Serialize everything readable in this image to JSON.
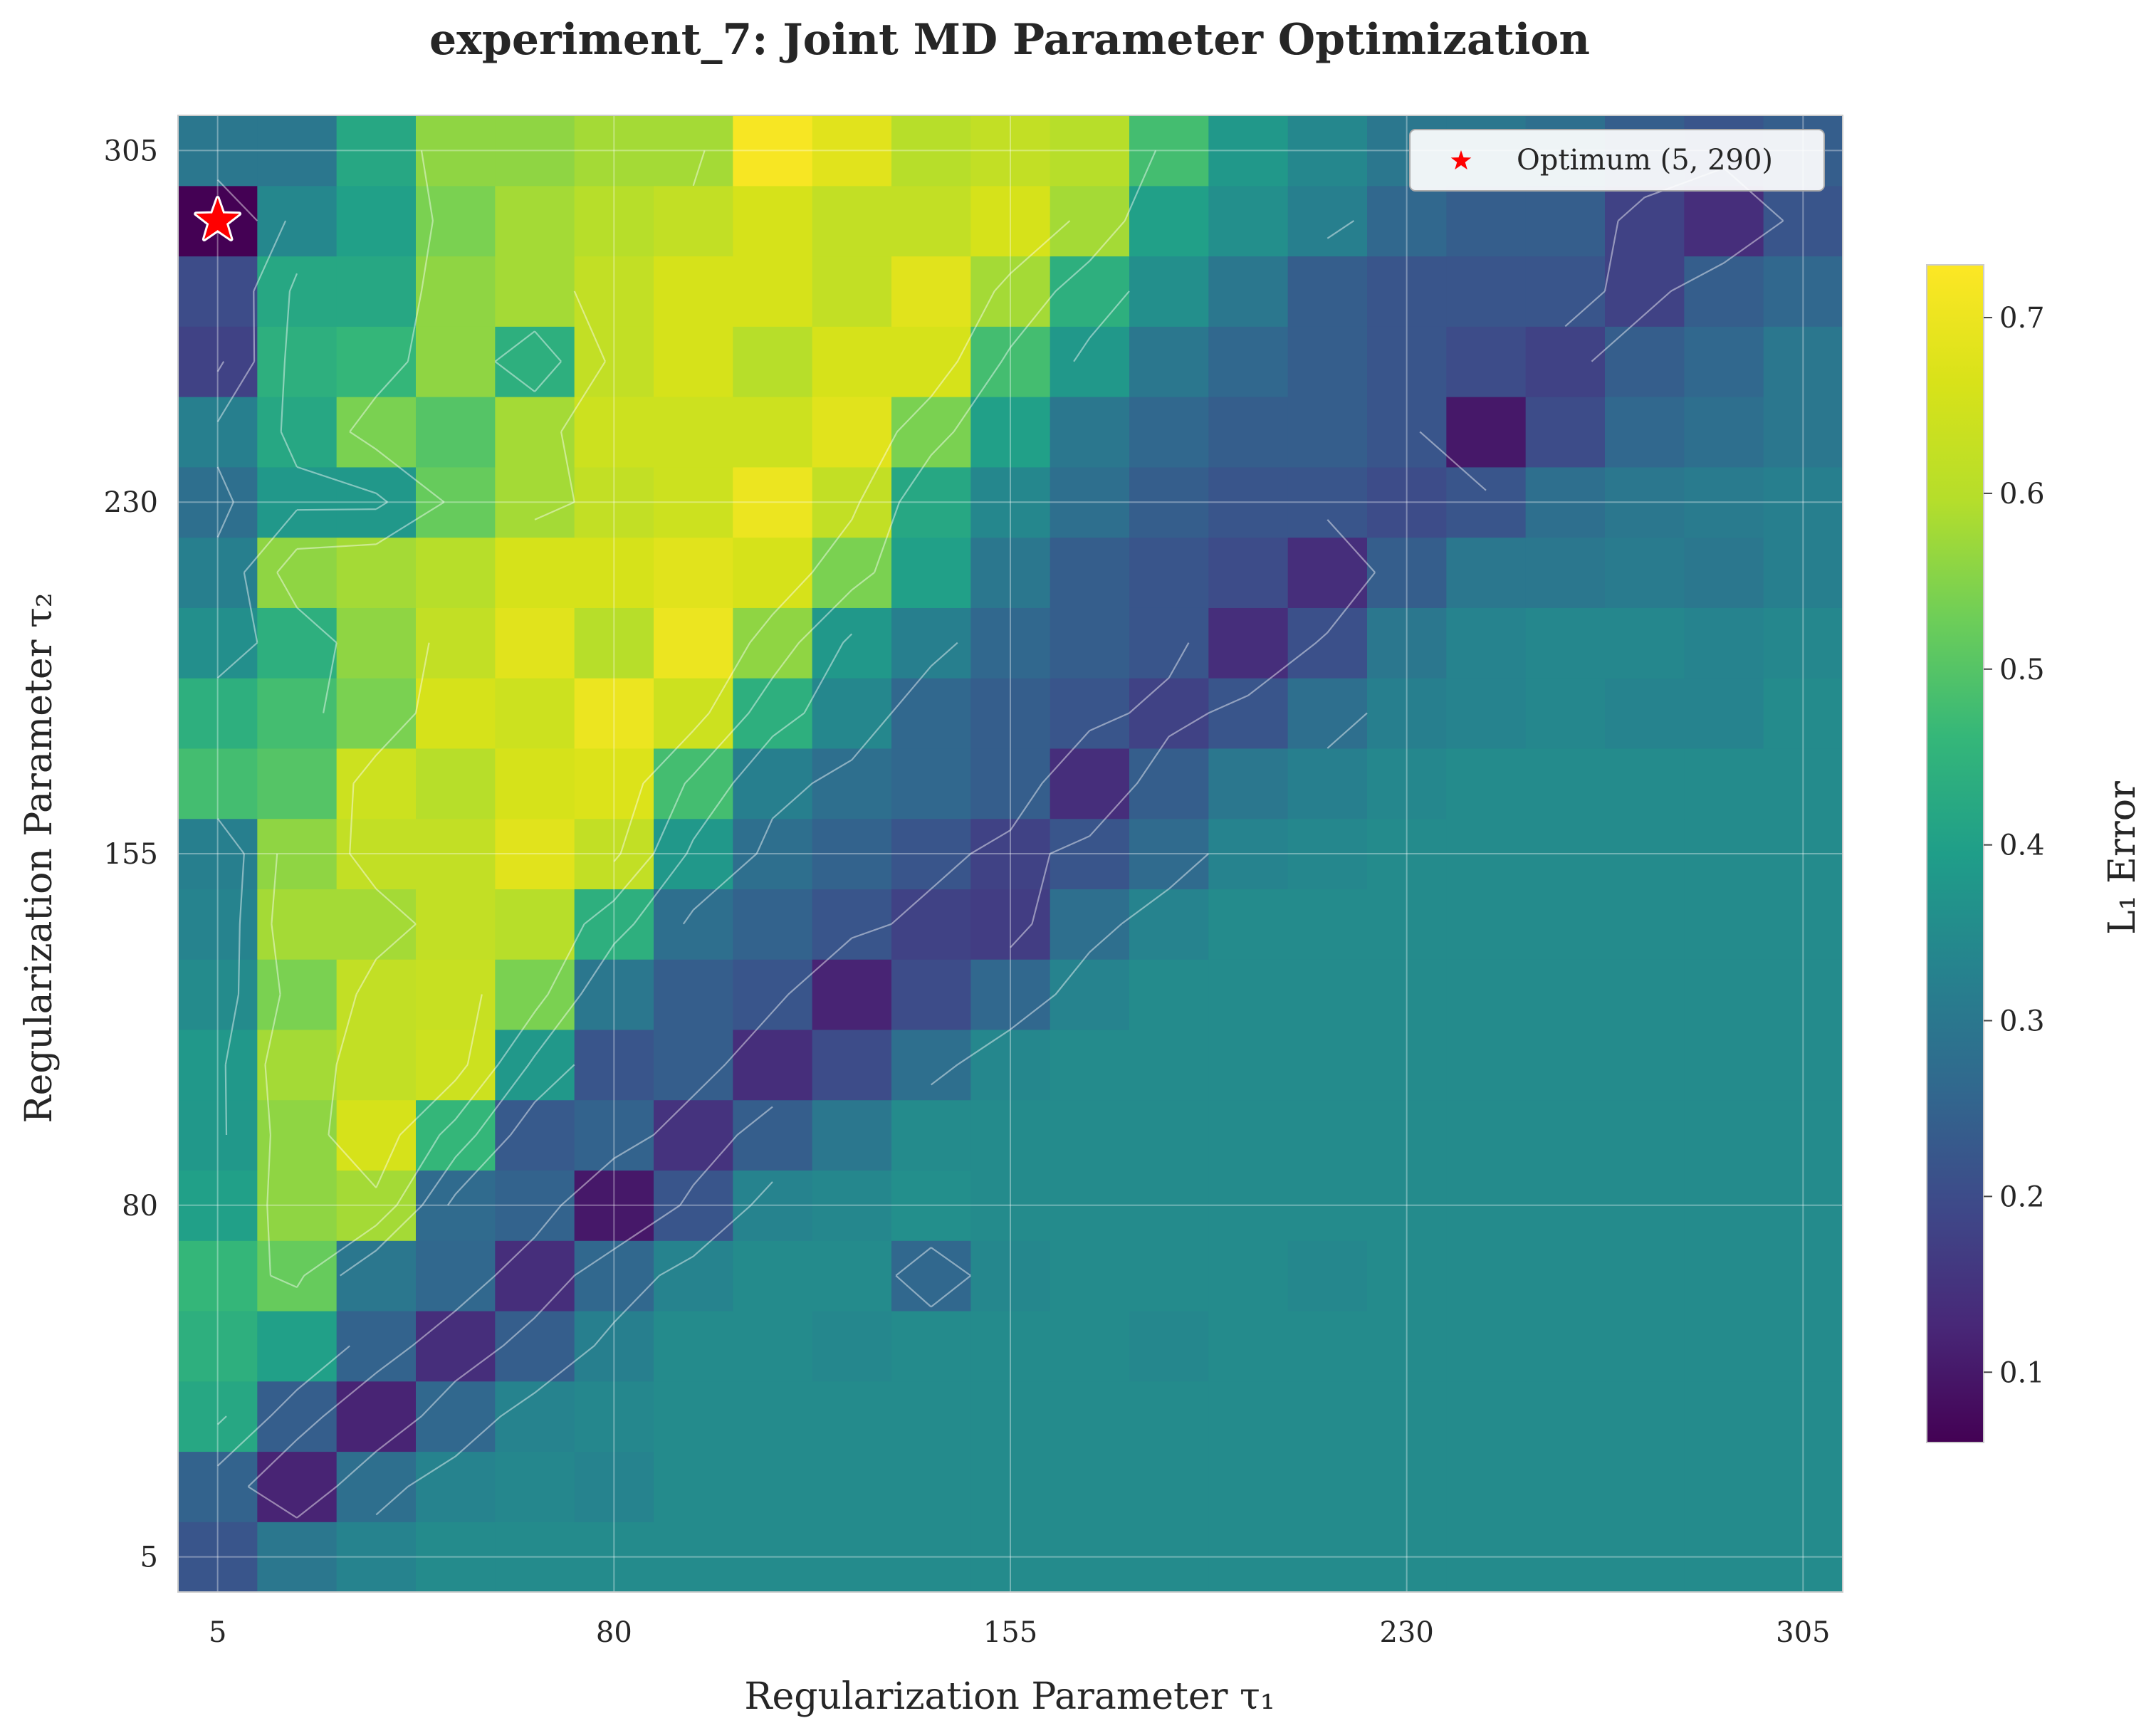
{
  "chart_data": {
    "type": "heatmap",
    "title": "experiment_7: Joint MD Parameter Optimization",
    "xlabel": "Regularization Parameter τ₁",
    "ylabel": "Regularization Parameter τ₂",
    "colorbar_label": "L₁ Error",
    "colormap": "viridis",
    "x": [
      5,
      20,
      35,
      50,
      65,
      80,
      95,
      110,
      125,
      140,
      155,
      170,
      185,
      200,
      215,
      230,
      245,
      260,
      275,
      290,
      305
    ],
    "y": [
      5,
      20,
      35,
      50,
      65,
      80,
      95,
      110,
      125,
      140,
      155,
      170,
      185,
      200,
      215,
      230,
      245,
      260,
      275,
      290,
      305
    ],
    "xlim": [
      -2.5,
      312.5
    ],
    "ylim": [
      -2.5,
      312.5
    ],
    "xticks": [
      5,
      80,
      155,
      230,
      305
    ],
    "yticks": [
      5,
      80,
      155,
      230,
      305
    ],
    "clim": [
      0.06,
      0.73
    ],
    "colorbar_ticks": [
      0.1,
      0.2,
      0.3,
      0.4,
      0.5,
      0.6,
      0.7
    ],
    "grid": true,
    "z": [
      [
        0.22,
        0.3,
        0.33,
        0.35,
        0.35,
        0.35,
        0.35,
        0.35,
        0.35,
        0.35,
        0.35,
        0.35,
        0.35,
        0.35,
        0.35,
        0.35,
        0.35,
        0.35,
        0.35,
        0.35,
        0.35
      ],
      [
        0.25,
        0.12,
        0.28,
        0.33,
        0.34,
        0.33,
        0.35,
        0.35,
        0.35,
        0.35,
        0.35,
        0.35,
        0.35,
        0.35,
        0.35,
        0.35,
        0.35,
        0.35,
        0.35,
        0.35,
        0.35
      ],
      [
        0.42,
        0.24,
        0.12,
        0.26,
        0.33,
        0.34,
        0.35,
        0.35,
        0.35,
        0.35,
        0.35,
        0.35,
        0.35,
        0.35,
        0.35,
        0.35,
        0.35,
        0.35,
        0.35,
        0.35,
        0.35
      ],
      [
        0.44,
        0.4,
        0.25,
        0.14,
        0.24,
        0.32,
        0.35,
        0.35,
        0.34,
        0.35,
        0.35,
        0.35,
        0.34,
        0.35,
        0.35,
        0.35,
        0.35,
        0.35,
        0.35,
        0.35,
        0.35
      ],
      [
        0.46,
        0.52,
        0.3,
        0.26,
        0.14,
        0.26,
        0.33,
        0.35,
        0.35,
        0.26,
        0.34,
        0.35,
        0.35,
        0.35,
        0.34,
        0.35,
        0.35,
        0.35,
        0.35,
        0.35,
        0.35
      ],
      [
        0.4,
        0.56,
        0.58,
        0.27,
        0.25,
        0.1,
        0.22,
        0.33,
        0.34,
        0.36,
        0.35,
        0.35,
        0.35,
        0.35,
        0.35,
        0.35,
        0.35,
        0.35,
        0.35,
        0.35,
        0.35
      ],
      [
        0.38,
        0.56,
        0.66,
        0.46,
        0.23,
        0.25,
        0.15,
        0.24,
        0.3,
        0.35,
        0.35,
        0.35,
        0.35,
        0.35,
        0.35,
        0.35,
        0.35,
        0.35,
        0.35,
        0.35,
        0.35
      ],
      [
        0.38,
        0.58,
        0.62,
        0.64,
        0.38,
        0.22,
        0.24,
        0.14,
        0.2,
        0.28,
        0.34,
        0.35,
        0.35,
        0.35,
        0.35,
        0.35,
        0.35,
        0.35,
        0.35,
        0.35,
        0.35
      ],
      [
        0.35,
        0.54,
        0.62,
        0.63,
        0.54,
        0.3,
        0.24,
        0.22,
        0.12,
        0.2,
        0.26,
        0.33,
        0.35,
        0.35,
        0.35,
        0.35,
        0.35,
        0.35,
        0.35,
        0.35,
        0.35
      ],
      [
        0.33,
        0.58,
        0.58,
        0.62,
        0.6,
        0.44,
        0.28,
        0.25,
        0.22,
        0.18,
        0.17,
        0.28,
        0.33,
        0.35,
        0.35,
        0.35,
        0.35,
        0.35,
        0.35,
        0.35,
        0.35
      ],
      [
        0.32,
        0.56,
        0.62,
        0.62,
        0.68,
        0.62,
        0.38,
        0.28,
        0.25,
        0.22,
        0.18,
        0.22,
        0.27,
        0.33,
        0.34,
        0.35,
        0.35,
        0.35,
        0.35,
        0.35,
        0.35
      ],
      [
        0.48,
        0.5,
        0.64,
        0.6,
        0.66,
        0.67,
        0.48,
        0.32,
        0.28,
        0.26,
        0.24,
        0.14,
        0.24,
        0.3,
        0.32,
        0.34,
        0.35,
        0.35,
        0.35,
        0.35,
        0.35
      ],
      [
        0.44,
        0.48,
        0.54,
        0.66,
        0.64,
        0.7,
        0.64,
        0.44,
        0.34,
        0.26,
        0.24,
        0.22,
        0.18,
        0.22,
        0.28,
        0.32,
        0.33,
        0.34,
        0.33,
        0.33,
        0.35
      ],
      [
        0.36,
        0.44,
        0.56,
        0.62,
        0.68,
        0.6,
        0.7,
        0.56,
        0.38,
        0.32,
        0.26,
        0.24,
        0.22,
        0.14,
        0.21,
        0.3,
        0.33,
        0.34,
        0.34,
        0.33,
        0.34
      ],
      [
        0.32,
        0.56,
        0.58,
        0.6,
        0.66,
        0.66,
        0.68,
        0.66,
        0.54,
        0.4,
        0.3,
        0.24,
        0.22,
        0.2,
        0.14,
        0.24,
        0.3,
        0.3,
        0.31,
        0.3,
        0.32
      ],
      [
        0.28,
        0.38,
        0.38,
        0.52,
        0.58,
        0.62,
        0.64,
        0.7,
        0.62,
        0.42,
        0.34,
        0.28,
        0.24,
        0.22,
        0.22,
        0.2,
        0.22,
        0.28,
        0.3,
        0.31,
        0.32
      ],
      [
        0.32,
        0.42,
        0.54,
        0.5,
        0.58,
        0.64,
        0.64,
        0.64,
        0.68,
        0.54,
        0.4,
        0.3,
        0.26,
        0.24,
        0.24,
        0.22,
        0.1,
        0.2,
        0.26,
        0.28,
        0.3
      ],
      [
        0.18,
        0.44,
        0.46,
        0.56,
        0.44,
        0.62,
        0.66,
        0.6,
        0.66,
        0.66,
        0.48,
        0.38,
        0.3,
        0.26,
        0.24,
        0.22,
        0.2,
        0.18,
        0.24,
        0.26,
        0.3
      ],
      [
        0.2,
        0.42,
        0.42,
        0.56,
        0.58,
        0.62,
        0.66,
        0.66,
        0.62,
        0.68,
        0.58,
        0.44,
        0.36,
        0.3,
        0.24,
        0.22,
        0.22,
        0.22,
        0.18,
        0.24,
        0.26
      ],
      [
        0.06,
        0.34,
        0.4,
        0.54,
        0.58,
        0.6,
        0.62,
        0.66,
        0.62,
        0.62,
        0.66,
        0.58,
        0.4,
        0.36,
        0.32,
        0.26,
        0.24,
        0.24,
        0.18,
        0.14,
        0.22
      ],
      [
        0.3,
        0.3,
        0.42,
        0.56,
        0.56,
        0.58,
        0.58,
        0.72,
        0.68,
        0.6,
        0.62,
        0.6,
        0.48,
        0.38,
        0.34,
        0.3,
        0.3,
        0.28,
        0.24,
        0.22,
        0.24
      ]
    ],
    "optimum": {
      "x": 5,
      "y": 290,
      "label": "Optimum (5, 290)"
    },
    "legend_position": "upper right"
  }
}
